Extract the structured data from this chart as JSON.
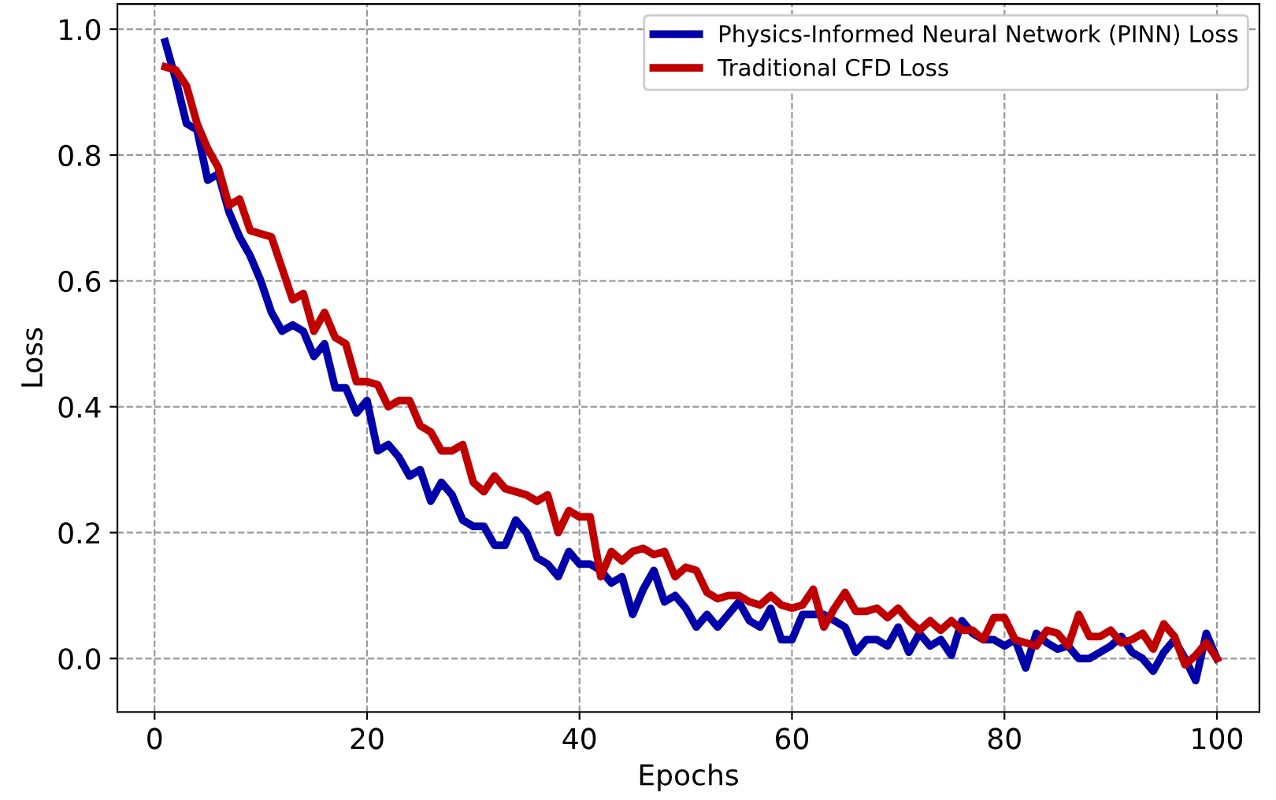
{
  "chart_data": {
    "type": "line",
    "xlabel": "Epochs",
    "ylabel": "Loss",
    "x": [
      1,
      2,
      3,
      4,
      5,
      6,
      7,
      8,
      9,
      10,
      11,
      12,
      13,
      14,
      15,
      16,
      17,
      18,
      19,
      20,
      21,
      22,
      23,
      24,
      25,
      26,
      27,
      28,
      29,
      30,
      31,
      32,
      33,
      34,
      35,
      36,
      37,
      38,
      39,
      40,
      41,
      42,
      43,
      44,
      45,
      46,
      47,
      48,
      49,
      50,
      51,
      52,
      53,
      54,
      55,
      56,
      57,
      58,
      59,
      60,
      61,
      62,
      63,
      64,
      65,
      66,
      67,
      68,
      69,
      70,
      71,
      72,
      73,
      74,
      75,
      76,
      77,
      78,
      79,
      80,
      81,
      82,
      83,
      84,
      85,
      86,
      87,
      88,
      89,
      90,
      91,
      92,
      93,
      94,
      95,
      96,
      97,
      98,
      99,
      100
    ],
    "series": [
      {
        "name": "Physics-Informed Neural Network (PINN) Loss",
        "color": "#0000aa",
        "values": [
          0.98,
          0.92,
          0.85,
          0.84,
          0.76,
          0.77,
          0.71,
          0.67,
          0.64,
          0.6,
          0.55,
          0.52,
          0.53,
          0.52,
          0.48,
          0.5,
          0.43,
          0.43,
          0.39,
          0.41,
          0.33,
          0.34,
          0.32,
          0.29,
          0.3,
          0.25,
          0.28,
          0.26,
          0.22,
          0.21,
          0.21,
          0.18,
          0.18,
          0.22,
          0.2,
          0.16,
          0.15,
          0.13,
          0.17,
          0.15,
          0.15,
          0.14,
          0.12,
          0.13,
          0.07,
          0.11,
          0.14,
          0.09,
          0.1,
          0.08,
          0.05,
          0.07,
          0.05,
          0.07,
          0.09,
          0.06,
          0.05,
          0.08,
          0.03,
          0.03,
          0.07,
          0.07,
          0.07,
          0.06,
          0.05,
          0.01,
          0.03,
          0.03,
          0.02,
          0.05,
          0.01,
          0.04,
          0.02,
          0.03,
          0.005,
          0.06,
          0.04,
          0.03,
          0.03,
          0.02,
          0.03,
          -0.015,
          0.04,
          0.025,
          0.015,
          0.02,
          0.0,
          0.0,
          0.01,
          0.02,
          0.035,
          0.01,
          0.0,
          -0.02,
          0.01,
          0.03,
          0.0,
          -0.035,
          0.04,
          0.0
        ]
      },
      {
        "name": "Traditional CFD Loss",
        "color": "#c00000",
        "values": [
          0.94,
          0.935,
          0.91,
          0.85,
          0.81,
          0.78,
          0.72,
          0.73,
          0.68,
          0.675,
          0.67,
          0.62,
          0.57,
          0.58,
          0.52,
          0.55,
          0.51,
          0.5,
          0.44,
          0.44,
          0.435,
          0.4,
          0.41,
          0.41,
          0.37,
          0.36,
          0.33,
          0.33,
          0.34,
          0.28,
          0.265,
          0.29,
          0.27,
          0.265,
          0.26,
          0.25,
          0.26,
          0.2,
          0.235,
          0.225,
          0.225,
          0.13,
          0.17,
          0.155,
          0.17,
          0.175,
          0.165,
          0.17,
          0.13,
          0.145,
          0.14,
          0.105,
          0.095,
          0.1,
          0.1,
          0.09,
          0.085,
          0.1,
          0.085,
          0.08,
          0.085,
          0.11,
          0.05,
          0.08,
          0.105,
          0.075,
          0.075,
          0.08,
          0.065,
          0.08,
          0.06,
          0.045,
          0.06,
          0.045,
          0.06,
          0.045,
          0.045,
          0.03,
          0.065,
          0.065,
          0.03,
          0.025,
          0.02,
          0.045,
          0.04,
          0.02,
          0.07,
          0.035,
          0.035,
          0.045,
          0.025,
          0.03,
          0.04,
          0.015,
          0.055,
          0.035,
          -0.01,
          0.005,
          0.025,
          0.0
        ]
      }
    ],
    "xlim": [
      -3.5,
      104
    ],
    "ylim": [
      -0.085,
      1.04
    ],
    "xticks": [
      0,
      20,
      40,
      60,
      80,
      100
    ],
    "yticks": [
      {
        "value": 0,
        "label": "0.0"
      },
      {
        "value": 0.2,
        "label": "0.2"
      },
      {
        "value": 0.4,
        "label": "0.4"
      },
      {
        "value": 0.6,
        "label": "0.6"
      },
      {
        "value": 0.8,
        "label": "0.8"
      },
      {
        "value": 1,
        "label": "1.0"
      }
    ],
    "grid": true,
    "legend": "top right",
    "line_style": "solid",
    "marker": "none"
  }
}
